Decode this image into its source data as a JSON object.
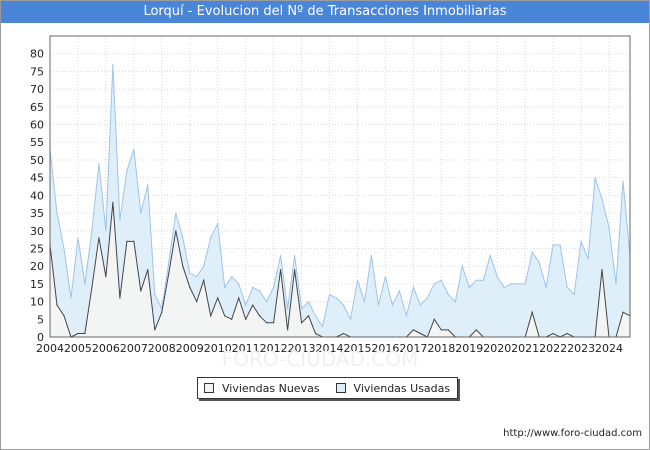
{
  "title": "Lorquí - Evolucion del Nº de Transacciones Inmobiliarias",
  "footer_url": "http://www.foro-ciudad.com",
  "watermark": "FORO-CIUDAD.COM",
  "colors": {
    "title_bg": "#4a86d8",
    "nuevas_fill": "#f3f3f3",
    "nuevas_line": "#444444",
    "usadas_fill": "#ddeefa",
    "usadas_line": "#9ec3ea",
    "grid": "#d9d9d9"
  },
  "chart_data": {
    "type": "area",
    "title": "Lorquí - Evolucion del Nº de Transacciones Inmobiliarias",
    "xlabel": "",
    "ylabel": "",
    "ylim": [
      0,
      85
    ],
    "yticks": [
      0,
      5,
      10,
      15,
      20,
      25,
      30,
      35,
      40,
      45,
      50,
      55,
      60,
      65,
      70,
      75,
      80
    ],
    "xlim": [
      2004,
      2024.75
    ],
    "years": [
      "2004",
      "2005",
      "2006",
      "2007",
      "2008",
      "2009",
      "2010",
      "2011",
      "2012",
      "2013",
      "2014",
      "2015",
      "2016",
      "2017",
      "2018",
      "2019",
      "2020",
      "2021",
      "2022",
      "2023",
      "2024"
    ],
    "x_start": 2004,
    "x_step": 0.25,
    "grid": true,
    "legend_position": "bottom",
    "series": [
      {
        "name": "Viviendas Nuevas",
        "values": [
          26,
          9,
          6,
          0,
          1,
          1,
          14,
          28,
          17,
          38,
          11,
          27,
          27,
          13,
          19,
          2,
          7,
          18,
          30,
          20,
          14,
          10,
          16,
          6,
          11,
          6,
          5,
          11,
          5,
          9,
          6,
          4,
          4,
          19,
          2,
          19,
          4,
          6,
          1,
          0,
          0,
          0,
          1,
          0,
          0,
          0,
          0,
          0,
          0,
          0,
          0,
          0,
          2,
          1,
          0,
          5,
          2,
          2,
          0,
          0,
          0,
          2,
          0,
          0,
          0,
          0,
          0,
          0,
          0,
          7,
          0,
          0,
          1,
          0,
          1,
          0,
          0,
          0,
          0,
          19,
          0,
          0,
          7,
          6
        ]
      },
      {
        "name": "Viviendas Usadas",
        "values": [
          53,
          35,
          25,
          11,
          28,
          15,
          30,
          49,
          30,
          77,
          33,
          47,
          53,
          35,
          43,
          12,
          8,
          21,
          35,
          28,
          18,
          17,
          20,
          28,
          32,
          14,
          17,
          15,
          9,
          14,
          13,
          10,
          14,
          23,
          8,
          23,
          8,
          10,
          6,
          3,
          12,
          11,
          9,
          5,
          16,
          10,
          23,
          9,
          17,
          9,
          13,
          6,
          14,
          9,
          11,
          15,
          16,
          12,
          10,
          20,
          14,
          16,
          16,
          23,
          17,
          14,
          15,
          15,
          15,
          24,
          21,
          14,
          26,
          26,
          14,
          12,
          27,
          22,
          45,
          39,
          31,
          15,
          44,
          23
        ]
      }
    ]
  }
}
